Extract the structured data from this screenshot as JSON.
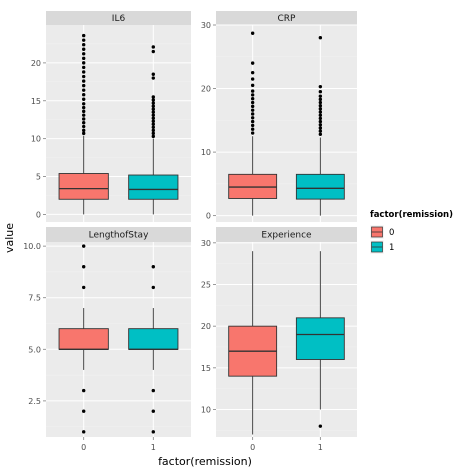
{
  "chart_data": {
    "type": "boxplot",
    "facet_type": "wrap",
    "facet_scales": "free_y",
    "xlabel": "factor(remission)",
    "ylabel": "value",
    "categories": [
      "0",
      "1"
    ],
    "legend": {
      "title": "factor(remission)",
      "placement": "right",
      "entries": [
        {
          "label": "0",
          "color": "#F8766D"
        },
        {
          "label": "1",
          "color": "#00BFC4"
        }
      ]
    },
    "panel_background": "#ebebeb",
    "strip_background": "#d9d9d9",
    "grid": true,
    "panels": [
      {
        "title": "IL6",
        "ylim": [
          -1,
          25
        ],
        "yticks": [
          0,
          5,
          10,
          15,
          20
        ],
        "boxes": [
          {
            "category": "0",
            "min": 0,
            "q1": 2.0,
            "median": 3.4,
            "q3": 5.4,
            "max": 10.4,
            "outliers": [
              10.7,
              11.1,
              11.6,
              12.1,
              12.6,
              13.1,
              13.6,
              14.1,
              14.6,
              15.2,
              15.8,
              16.4,
              17.0,
              17.6,
              18.2,
              18.8,
              19.4,
              20.0,
              20.6,
              21.2,
              21.8,
              22.4,
              23.0,
              23.6
            ]
          },
          {
            "category": "1",
            "min": 0,
            "q1": 2.0,
            "median": 3.3,
            "q3": 5.2,
            "max": 10.0,
            "outliers": [
              10.3,
              10.7,
              11.1,
              11.5,
              11.9,
              12.3,
              12.7,
              13.1,
              13.5,
              13.9,
              14.3,
              14.7,
              15.1,
              15.5,
              18.0,
              18.5,
              21.5,
              22.1
            ]
          }
        ]
      },
      {
        "title": "CRP",
        "ylim": [
          -1,
          30
        ],
        "yticks": [
          0,
          10,
          20,
          30
        ],
        "boxes": [
          {
            "category": "0",
            "min": 0,
            "q1": 2.7,
            "median": 4.5,
            "q3": 6.5,
            "max": 12.5,
            "outliers": [
              13.0,
              13.6,
              14.2,
              14.8,
              15.4,
              16.0,
              16.6,
              17.2,
              17.8,
              18.4,
              19.0,
              19.6,
              20.5,
              21.5,
              22.5,
              24.0,
              28.7
            ]
          },
          {
            "category": "1",
            "min": 0,
            "q1": 2.6,
            "median": 4.3,
            "q3": 6.5,
            "max": 12.3,
            "outliers": [
              12.8,
              13.3,
              13.8,
              14.3,
              14.8,
              15.3,
              15.8,
              16.3,
              16.8,
              17.3,
              17.8,
              18.3,
              18.8,
              19.5,
              20.3,
              28.0
            ]
          }
        ]
      },
      {
        "title": "LengthofStay",
        "ylim": [
          0.75,
          10.2
        ],
        "yticks": [
          2.5,
          5.0,
          7.5,
          10.0
        ],
        "ytick_labels": [
          "2.5",
          "5.0",
          "7.5",
          "10.0"
        ],
        "boxes": [
          {
            "category": "0",
            "min": 4,
            "q1": 5,
            "median": 5,
            "q3": 6,
            "max": 7,
            "outliers": [
              1,
              2,
              3,
              8,
              9,
              10
            ]
          },
          {
            "category": "1",
            "min": 4,
            "q1": 5,
            "median": 5,
            "q3": 6,
            "max": 7,
            "outliers": [
              1,
              2,
              3,
              8,
              9
            ]
          }
        ]
      },
      {
        "title": "Experience",
        "ylim": [
          6.7,
          30.1
        ],
        "yticks": [
          10,
          15,
          20,
          25,
          30
        ],
        "boxes": [
          {
            "category": "0",
            "min": 7,
            "q1": 14,
            "median": 17,
            "q3": 20,
            "max": 29,
            "outliers": []
          },
          {
            "category": "1",
            "min": 10,
            "q1": 16,
            "median": 19,
            "q3": 21,
            "max": 29,
            "outliers": [
              8
            ]
          }
        ]
      }
    ]
  }
}
